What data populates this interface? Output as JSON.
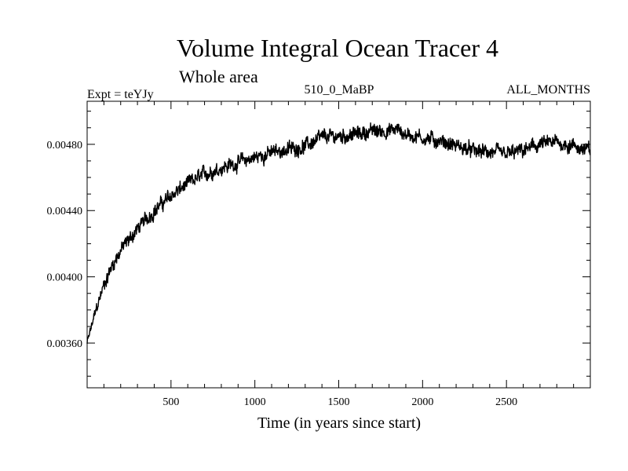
{
  "chart_data": {
    "type": "line",
    "title": "Volume Integral Ocean Tracer 4",
    "subtitle": "Whole area",
    "header_left": "Expt = teYJy",
    "header_center": "510_0_MaBP",
    "header_right": "ALL_MONTHS",
    "xlabel": "Time (in years since start)",
    "ylabel": "",
    "xlim": [
      0,
      3000
    ],
    "ylim": [
      0.00333,
      0.00506
    ],
    "x_ticks": [
      500,
      1000,
      1500,
      2000,
      2500
    ],
    "x_tick_labels": [
      "500",
      "1000",
      "1500",
      "2000",
      "2500"
    ],
    "y_ticks": [
      0.0036,
      0.004,
      0.0044,
      0.0048
    ],
    "y_tick_labels": [
      "0.00360",
      "0.00400",
      "0.00440",
      "0.00480"
    ],
    "grid": false,
    "noise_amplitude": 5e-05,
    "series": [
      {
        "name": "Volume Integral Ocean Tracer 4",
        "color": "#000000",
        "x": [
          0,
          50,
          100,
          150,
          200,
          300,
          400,
          500,
          600,
          700,
          800,
          900,
          1000,
          1100,
          1200,
          1300,
          1400,
          1500,
          1600,
          1700,
          1800,
          1850,
          1900,
          2000,
          2100,
          2200,
          2300,
          2400,
          2500,
          2600,
          2700,
          2800,
          2900,
          3000
        ],
        "values": [
          0.0036,
          0.00379,
          0.00395,
          0.00407,
          0.00416,
          0.00429,
          0.0044,
          0.00449,
          0.00456,
          0.00462,
          0.00466,
          0.00469,
          0.00472,
          0.00475,
          0.00477,
          0.00479,
          0.00484,
          0.00485,
          0.00486,
          0.00488,
          0.00488,
          0.00489,
          0.00486,
          0.00484,
          0.00482,
          0.00479,
          0.00476,
          0.00475,
          0.00474,
          0.00476,
          0.0048,
          0.00481,
          0.00479,
          0.00476
        ]
      }
    ]
  }
}
